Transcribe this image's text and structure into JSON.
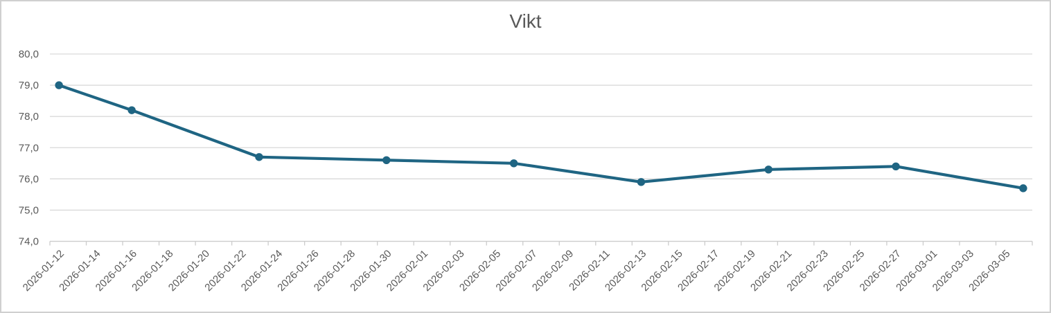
{
  "chart_data": {
    "type": "line",
    "title": "Vikt",
    "xlabel": "",
    "ylabel": "",
    "legend": false,
    "grid": true,
    "x_axis": {
      "kind": "date",
      "start": "2026-01-12",
      "total_days": 54,
      "tick_step_days": 2,
      "tick_labels": [
        "2026-01-12",
        "2026-01-14",
        "2026-01-16",
        "2026-01-18",
        "2026-01-20",
        "2026-01-22",
        "2026-01-24",
        "2026-01-26",
        "2026-01-28",
        "2026-01-30",
        "2026-02-01",
        "2026-02-03",
        "2026-02-05",
        "2026-02-07",
        "2026-02-09",
        "2026-02-11",
        "2026-02-13",
        "2026-02-15",
        "2026-02-17",
        "2026-02-19",
        "2026-02-21",
        "2026-02-23",
        "2026-02-25",
        "2026-02-27",
        "2026-03-01",
        "2026-03-03",
        "2026-03-05"
      ],
      "label_rotation_deg": 45
    },
    "y_axis": {
      "min": 74,
      "max": 80,
      "tick_step": 1,
      "tick_labels_top_to_bottom": [
        "80,0",
        "79,0",
        "78,0",
        "77,0",
        "76,0",
        "75,0",
        "74,0"
      ],
      "decimal_separator": ","
    },
    "series": [
      {
        "name": "Vikt",
        "color": "#1f6583",
        "marker": "circle",
        "points": [
          {
            "date": "2026-01-12",
            "value": 79.0
          },
          {
            "date": "2026-01-16",
            "value": 78.2
          },
          {
            "date": "2026-01-23",
            "value": 76.7
          },
          {
            "date": "2026-01-30",
            "value": 76.6
          },
          {
            "date": "2026-02-06",
            "value": 76.5
          },
          {
            "date": "2026-02-13",
            "value": 75.9
          },
          {
            "date": "2026-02-20",
            "value": 76.3
          },
          {
            "date": "2026-02-27",
            "value": 76.4
          },
          {
            "date": "2026-03-06",
            "value": 75.7
          }
        ]
      }
    ],
    "colors": {
      "line": "#1f6583",
      "gridline": "#d9d9d9",
      "axis": "#cccccc",
      "text": "#595959",
      "background": "#ffffff"
    }
  }
}
